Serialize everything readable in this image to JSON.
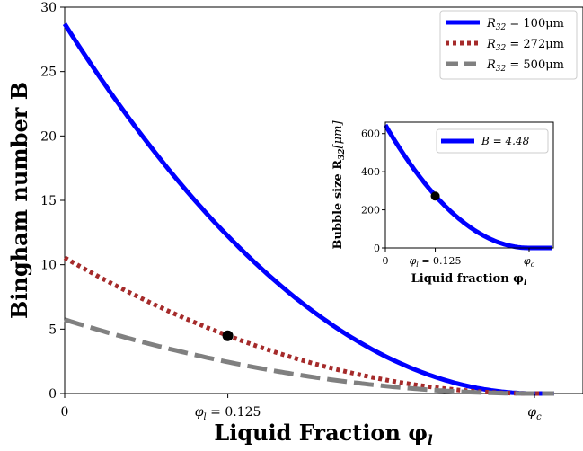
{
  "chart_data": [
    {
      "type": "line",
      "xlabel": "Liquid Fraction φ",
      "xlabel_sub": "l",
      "ylabel": "Bingham number B",
      "ylim": [
        0,
        30
      ],
      "xlim": [
        0,
        0.36
      ],
      "phi_c": 0.36,
      "yticks": [
        "0",
        "5",
        "10",
        "15",
        "20",
        "25",
        "30"
      ],
      "xticks": [
        {
          "value": 0,
          "label": "0",
          "sub": ""
        },
        {
          "value": 0.125,
          "label": "φ = 0.125",
          "sub": "l"
        },
        {
          "value": 0.36,
          "label": "φ",
          "sub": "c"
        }
      ],
      "grid": false,
      "legend_position": "top-right",
      "series": [
        {
          "name": "R32 = 100μm",
          "legend": "R = 100μm",
          "legend_sub": "32",
          "color": "#0000ff",
          "dash": "solid",
          "b0": 28.7
        },
        {
          "name": "R32 = 272μm",
          "legend": "R = 272μm",
          "legend_sub": "32",
          "color": "#a52a2a",
          "dash": "dotted",
          "b0": 10.55
        },
        {
          "name": "R32 = 500μm",
          "legend": "R = 500μm",
          "legend_sub": "32",
          "color": "#808080",
          "dash": "dashed",
          "b0": 5.74
        }
      ],
      "marker": {
        "x": 0.125,
        "y": 4.48,
        "color": "#000000"
      }
    },
    {
      "type": "line",
      "xlabel": "Liquid fraction φ",
      "xlabel_sub": "l",
      "ylabel": "Bubble size R",
      "ylabel_sub": "32",
      "ylabel_unit": "[μm]",
      "ylim": [
        0,
        660
      ],
      "yticks": [
        "0",
        "200",
        "400",
        "600"
      ],
      "xticks": [
        {
          "value": 0,
          "label": "0",
          "sub": ""
        },
        {
          "value": 0.125,
          "label": "φ = 0.125",
          "sub": "l"
        },
        {
          "value": 0.36,
          "label": "φ",
          "sub": "c"
        }
      ],
      "legend_position": "top-right",
      "series": [
        {
          "name": "B = 4.48",
          "legend": "B = 4.48",
          "color": "#0000ff",
          "dash": "solid",
          "r0": 645
        }
      ],
      "marker": {
        "x": 0.125,
        "y": 272,
        "color": "#000000"
      }
    }
  ]
}
